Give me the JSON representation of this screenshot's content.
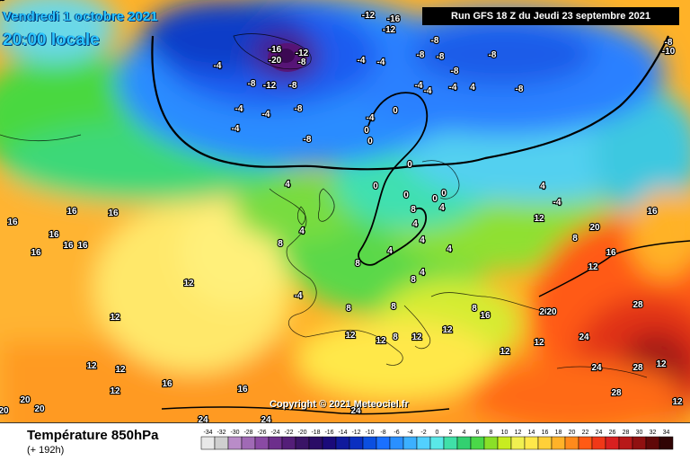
{
  "header": {
    "date_line": "Vendredi 1 octobre 2021",
    "time_line": "20:00 locale",
    "run_info": "Run GFS 18 Z du Jeudi 23 septembre 2021"
  },
  "copyright": "Copyright © 2021 Meteociel.fr",
  "footer": {
    "variable_title": "Température 850hPa",
    "forecast_hour": "(+ 192h)"
  },
  "color_scale": {
    "labels": [
      "-34",
      "-32",
      "-30",
      "-28",
      "-26",
      "-24",
      "-22",
      "-20",
      "-18",
      "-16",
      "-14",
      "-12",
      "-10",
      "-8",
      "-6",
      "-4",
      "-2",
      "0",
      "2",
      "4",
      "6",
      "8",
      "10",
      "12",
      "14",
      "16",
      "18",
      "20",
      "22",
      "24",
      "26",
      "28",
      "30",
      "32",
      "34"
    ],
    "colors": [
      "#e8e8e8",
      "#cfcfcf",
      "#b98cc8",
      "#a06ab5",
      "#8a4aa4",
      "#6d2f8c",
      "#541e78",
      "#3a1466",
      "#2a0c66",
      "#1a0a7a",
      "#0f1a9c",
      "#0a2fc0",
      "#0b4fe0",
      "#1a70ff",
      "#2a90ff",
      "#3cb0ff",
      "#52d0ff",
      "#5ae8e8",
      "#40e0a8",
      "#33d070",
      "#4ad848",
      "#8ae028",
      "#c8ec20",
      "#f0f050",
      "#ffe84a",
      "#ffd038",
      "#ffb228",
      "#ff8a1c",
      "#ff5a14",
      "#f03818",
      "#d82020",
      "#b81818",
      "#901010",
      "#600808",
      "#300404"
    ]
  },
  "map_labels": [
    {
      "text": "-12"
    },
    {
      "text": "-16"
    },
    {
      "text": "-12"
    },
    {
      "text": "-16"
    },
    {
      "text": "-20"
    },
    {
      "text": "-12"
    },
    {
      "text": "-8"
    },
    {
      "text": "-8"
    },
    {
      "text": "-8"
    },
    {
      "text": "-4"
    },
    {
      "text": "-12"
    },
    {
      "text": "-4"
    },
    {
      "text": "-4"
    },
    {
      "text": "-4"
    },
    {
      "text": "-8"
    },
    {
      "text": "-8"
    },
    {
      "text": "-4"
    },
    {
      "text": "-8"
    },
    {
      "text": "-8"
    },
    {
      "text": "-8"
    },
    {
      "text": "-8"
    },
    {
      "text": "-8"
    },
    {
      "text": "-8"
    },
    {
      "text": "-4"
    },
    {
      "text": "-8"
    },
    {
      "text": "-10"
    },
    {
      "text": "-4"
    },
    {
      "text": "-4"
    },
    {
      "text": "-4"
    },
    {
      "text": "4"
    },
    {
      "text": "4"
    },
    {
      "text": "-4"
    },
    {
      "text": "4"
    },
    {
      "text": "4"
    },
    {
      "text": "-4"
    },
    {
      "text": "-4"
    },
    {
      "text": "0"
    },
    {
      "text": "0"
    },
    {
      "text": "0"
    },
    {
      "text": "0"
    },
    {
      "text": "0"
    },
    {
      "text": "0"
    },
    {
      "text": "4"
    },
    {
      "text": "8"
    },
    {
      "text": "8"
    },
    {
      "text": "4"
    },
    {
      "text": "0"
    },
    {
      "text": "4"
    },
    {
      "text": "0"
    },
    {
      "text": "4"
    },
    {
      "text": "4"
    },
    {
      "text": "4"
    },
    {
      "text": "8"
    },
    {
      "text": "12"
    },
    {
      "text": "12"
    },
    {
      "text": "12"
    },
    {
      "text": "12"
    },
    {
      "text": "12"
    },
    {
      "text": "12"
    },
    {
      "text": "12"
    },
    {
      "text": "16"
    },
    {
      "text": "16"
    },
    {
      "text": "16"
    },
    {
      "text": "16"
    },
    {
      "text": "16"
    },
    {
      "text": "16"
    },
    {
      "text": "16"
    },
    {
      "text": "16"
    },
    {
      "text": "16"
    },
    {
      "text": "16"
    },
    {
      "text": "20"
    },
    {
      "text": "20"
    },
    {
      "text": "20"
    },
    {
      "text": "20"
    },
    {
      "text": "24"
    },
    {
      "text": "24"
    },
    {
      "text": "24"
    },
    {
      "text": "24"
    },
    {
      "text": "28"
    },
    {
      "text": "28"
    },
    {
      "text": "28"
    },
    {
      "text": "12"
    },
    {
      "text": "12"
    },
    {
      "text": "12"
    },
    {
      "text": "8"
    },
    {
      "text": "8"
    },
    {
      "text": "8"
    },
    {
      "text": "12"
    },
    {
      "text": "8"
    },
    {
      "text": "12"
    },
    {
      "text": "8"
    },
    {
      "text": "12"
    },
    {
      "text": "16"
    },
    {
      "text": "12"
    },
    {
      "text": "8"
    },
    {
      "text": "12"
    },
    {
      "text": "16"
    },
    {
      "text": "20"
    },
    {
      "text": "24"
    },
    {
      "text": "20"
    },
    {
      "text": "16"
    },
    {
      "text": "20"
    }
  ]
}
